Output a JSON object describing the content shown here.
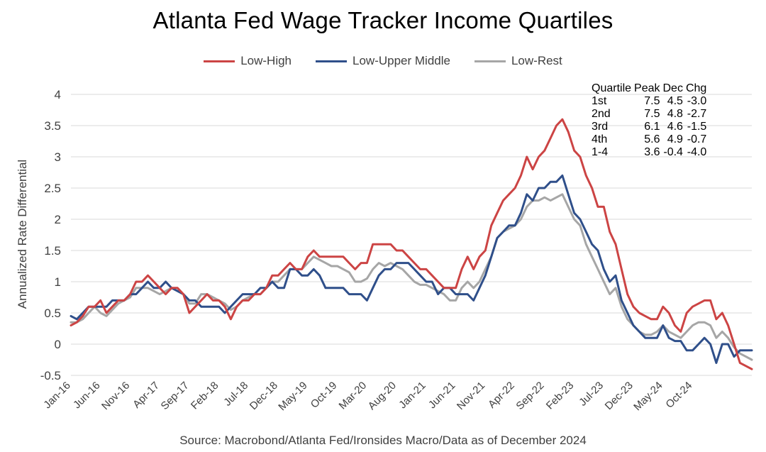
{
  "chart_data": {
    "type": "line",
    "title": "Atlanta Fed Wage Tracker Income Quartiles",
    "ylabel": "Annualized Rate Differential",
    "xlabel": "",
    "source": "Source: Macrobond/Atlanta Fed/Ironsides Macro/Data as of December 2024",
    "ylim": [
      -0.5,
      4
    ],
    "y_ticks": [
      "4",
      "3.5",
      "3",
      "2.5",
      "2",
      "1.5",
      "1",
      "0.5",
      "0",
      "-0.5"
    ],
    "y_tick_values": [
      4,
      3.5,
      3,
      2.5,
      2,
      1.5,
      1,
      0.5,
      0,
      -0.5
    ],
    "x_ticks": [
      "Jan-16",
      "Jun-16",
      "Nov-16",
      "Apr-17",
      "Sep-17",
      "Feb-18",
      "Jul-18",
      "Dec-18",
      "May-19",
      "Oct-19",
      "Mar-20",
      "Aug-20",
      "Jan-21",
      "Jun-21",
      "Nov-21",
      "Apr-22",
      "Sep-22",
      "Feb-23",
      "Jul-23",
      "Dec-23",
      "May-24",
      "Oct-24"
    ],
    "x_start": "Jan-16",
    "x_end": "Dec-24",
    "grid": "horizontal",
    "legend_position": "top-center",
    "series": [
      {
        "name": "Low-High",
        "color": "#cc4444",
        "values": [
          0.3,
          0.35,
          0.45,
          0.6,
          0.6,
          0.7,
          0.5,
          0.6,
          0.7,
          0.7,
          0.8,
          1.0,
          1.0,
          1.1,
          1.0,
          0.9,
          0.8,
          0.9,
          0.9,
          0.8,
          0.5,
          0.6,
          0.7,
          0.8,
          0.7,
          0.7,
          0.6,
          0.4,
          0.6,
          0.7,
          0.7,
          0.8,
          0.8,
          0.9,
          1.1,
          1.1,
          1.2,
          1.3,
          1.2,
          1.2,
          1.4,
          1.5,
          1.4,
          1.4,
          1.4,
          1.4,
          1.4,
          1.3,
          1.2,
          1.3,
          1.3,
          1.6,
          1.6,
          1.6,
          1.6,
          1.5,
          1.5,
          1.4,
          1.3,
          1.2,
          1.2,
          1.1,
          1.0,
          0.9,
          0.9,
          0.9,
          1.2,
          1.4,
          1.2,
          1.4,
          1.5,
          1.9,
          2.1,
          2.3,
          2.4,
          2.5,
          2.7,
          3.0,
          2.8,
          3.0,
          3.1,
          3.3,
          3.5,
          3.6,
          3.4,
          3.1,
          3.0,
          2.7,
          2.5,
          2.2,
          2.2,
          1.8,
          1.6,
          1.2,
          0.8,
          0.6,
          0.5,
          0.45,
          0.4,
          0.4,
          0.6,
          0.5,
          0.3,
          0.2,
          0.5,
          0.6,
          0.65,
          0.7,
          0.7,
          0.4,
          0.5,
          0.3,
          0.0,
          -0.3,
          -0.35,
          -0.4
        ]
      },
      {
        "name": "Low-Upper Middle",
        "color": "#2f4f8a",
        "values": [
          0.45,
          0.4,
          0.5,
          0.6,
          0.6,
          0.6,
          0.6,
          0.7,
          0.7,
          0.7,
          0.8,
          0.8,
          0.9,
          1.0,
          0.9,
          0.9,
          1.0,
          0.9,
          0.85,
          0.8,
          0.7,
          0.7,
          0.6,
          0.6,
          0.6,
          0.6,
          0.5,
          0.6,
          0.7,
          0.8,
          0.8,
          0.8,
          0.9,
          0.9,
          1.0,
          0.9,
          0.9,
          1.2,
          1.2,
          1.1,
          1.1,
          1.2,
          1.1,
          0.9,
          0.9,
          0.9,
          0.9,
          0.8,
          0.8,
          0.8,
          0.7,
          0.9,
          1.1,
          1.2,
          1.2,
          1.3,
          1.3,
          1.3,
          1.2,
          1.1,
          1.0,
          1.0,
          0.8,
          0.9,
          0.9,
          0.8,
          0.8,
          0.8,
          0.7,
          0.9,
          1.1,
          1.4,
          1.7,
          1.8,
          1.9,
          1.9,
          2.1,
          2.4,
          2.3,
          2.5,
          2.5,
          2.6,
          2.6,
          2.7,
          2.4,
          2.1,
          2.0,
          1.8,
          1.6,
          1.5,
          1.2,
          1.0,
          1.1,
          0.7,
          0.5,
          0.3,
          0.2,
          0.1,
          0.1,
          0.1,
          0.3,
          0.1,
          0.05,
          0.05,
          -0.1,
          -0.1,
          0.0,
          0.1,
          0.0,
          -0.3,
          0.0,
          0.0,
          -0.2,
          -0.1,
          -0.1,
          -0.1
        ]
      },
      {
        "name": "Low-Rest",
        "color": "#a6a6a6",
        "values": [
          0.35,
          0.35,
          0.4,
          0.5,
          0.6,
          0.5,
          0.45,
          0.55,
          0.65,
          0.7,
          0.75,
          0.9,
          0.9,
          0.9,
          0.85,
          0.8,
          0.85,
          0.9,
          0.85,
          0.8,
          0.65,
          0.65,
          0.8,
          0.8,
          0.75,
          0.7,
          0.65,
          0.55,
          0.6,
          0.7,
          0.75,
          0.8,
          0.8,
          0.9,
          1.0,
          1.0,
          1.1,
          1.2,
          1.2,
          1.2,
          1.3,
          1.4,
          1.35,
          1.3,
          1.25,
          1.25,
          1.2,
          1.15,
          1.0,
          1.0,
          1.05,
          1.2,
          1.3,
          1.25,
          1.3,
          1.25,
          1.2,
          1.1,
          1.0,
          0.95,
          0.95,
          0.9,
          0.85,
          0.8,
          0.7,
          0.7,
          0.9,
          1.0,
          0.9,
          1.0,
          1.2,
          1.4,
          1.7,
          1.8,
          1.85,
          1.9,
          2.0,
          2.2,
          2.3,
          2.3,
          2.35,
          2.3,
          2.35,
          2.4,
          2.2,
          2.0,
          1.9,
          1.6,
          1.4,
          1.2,
          1.0,
          0.8,
          0.9,
          0.6,
          0.4,
          0.3,
          0.2,
          0.15,
          0.15,
          0.2,
          0.3,
          0.2,
          0.15,
          0.1,
          0.2,
          0.3,
          0.35,
          0.35,
          0.3,
          0.1,
          0.2,
          0.1,
          -0.05,
          -0.15,
          -0.2,
          -0.25
        ]
      }
    ],
    "table": {
      "header": [
        "Quartile",
        "Peak",
        "Dec",
        "Chg"
      ],
      "rows": [
        [
          "1st",
          "7.5",
          "4.5",
          "-3.0"
        ],
        [
          "2nd",
          "7.5",
          "4.8",
          "-2.7"
        ],
        [
          "3rd",
          "6.1",
          "4.6",
          "-1.5"
        ],
        [
          "4th",
          "5.6",
          "4.9",
          "-0.7"
        ],
        [
          "1-4",
          "3.6",
          "-0.4",
          "-4.0"
        ]
      ]
    }
  }
}
